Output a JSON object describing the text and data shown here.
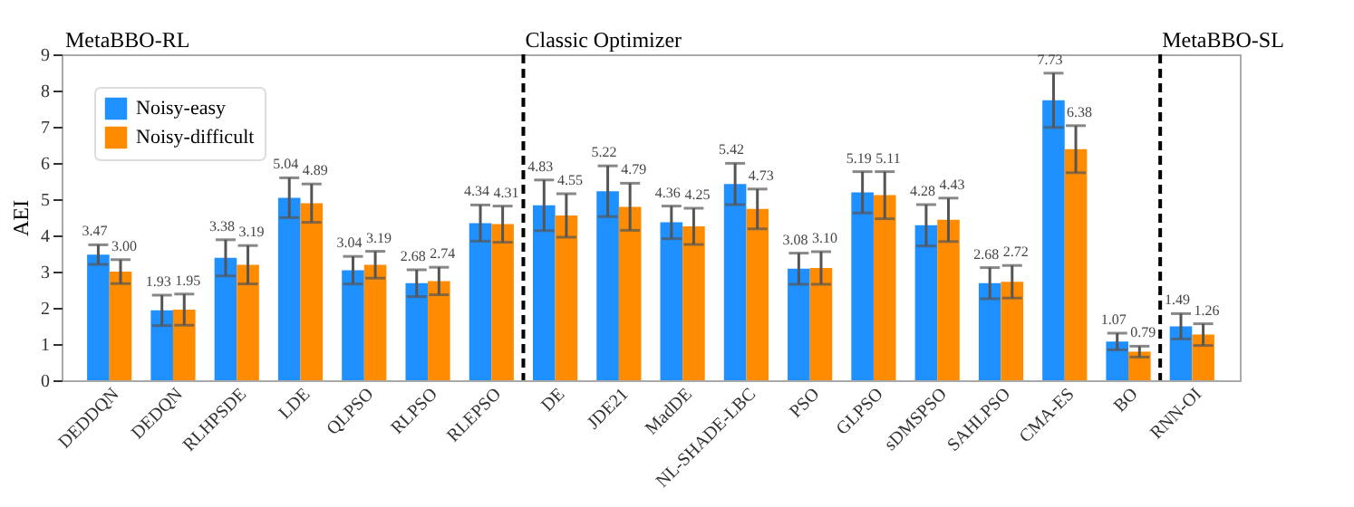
{
  "chart_data": {
    "type": "bar",
    "ylabel": "AEI",
    "categories": [
      "DEDDQN",
      "DEDQN",
      "RLHPSDE",
      "LDE",
      "QLPSO",
      "RLPSO",
      "RLEPSO",
      "DE",
      "JDE21",
      "MadDE",
      "NL-SHADE-LBC",
      "PSO",
      "GLPSO",
      "sDMSPSO",
      "SAHLPSO",
      "CMA-ES",
      "BO",
      "RNN-OI"
    ],
    "series": [
      {
        "name": "Noisy-easy",
        "color": "#1e90ff",
        "values": [
          3.47,
          1.93,
          3.38,
          5.04,
          3.04,
          2.68,
          4.34,
          4.83,
          5.22,
          4.36,
          5.42,
          3.08,
          5.19,
          4.28,
          2.68,
          7.73,
          1.07,
          1.49
        ],
        "value_labels": [
          "3.47",
          "1.93",
          "3.38",
          "5.04",
          "3.04",
          "2.68",
          "4.34",
          "4.83",
          "5.22",
          "4.36",
          "5.42",
          "3.08",
          "5.19",
          "4.28",
          "2.68",
          "7.73",
          "1.07",
          "1.49"
        ],
        "errors": [
          0.27,
          0.42,
          0.5,
          0.55,
          0.38,
          0.37,
          0.5,
          0.7,
          0.7,
          0.45,
          0.57,
          0.43,
          0.57,
          0.57,
          0.43,
          0.75,
          0.23,
          0.35
        ]
      },
      {
        "name": "Noisy-difficult",
        "color": "#ff8c00",
        "values": [
          3.0,
          1.95,
          3.19,
          4.89,
          3.19,
          2.74,
          4.31,
          4.55,
          4.79,
          4.25,
          4.73,
          3.1,
          5.11,
          4.43,
          2.72,
          6.38,
          0.79,
          1.26
        ],
        "value_labels": [
          "3.00",
          "1.95",
          "3.19",
          "4.89",
          "3.19",
          "2.74",
          "4.31",
          "4.55",
          "4.79",
          "4.25",
          "4.73",
          "3.10",
          "5.11",
          "4.43",
          "2.72",
          "6.38",
          "0.79",
          "1.26"
        ],
        "errors": [
          0.33,
          0.43,
          0.53,
          0.53,
          0.37,
          0.38,
          0.5,
          0.6,
          0.65,
          0.5,
          0.55,
          0.45,
          0.65,
          0.6,
          0.45,
          0.65,
          0.15,
          0.3
        ]
      }
    ],
    "ylim": [
      0,
      9
    ],
    "yticks": [
      0,
      1,
      2,
      3,
      4,
      5,
      6,
      7,
      8,
      9
    ],
    "grid": false,
    "legend": "top left",
    "annotations": [
      "MetaBBO-RL",
      "Classic Optimizer",
      "MetaBBO-SL"
    ]
  }
}
